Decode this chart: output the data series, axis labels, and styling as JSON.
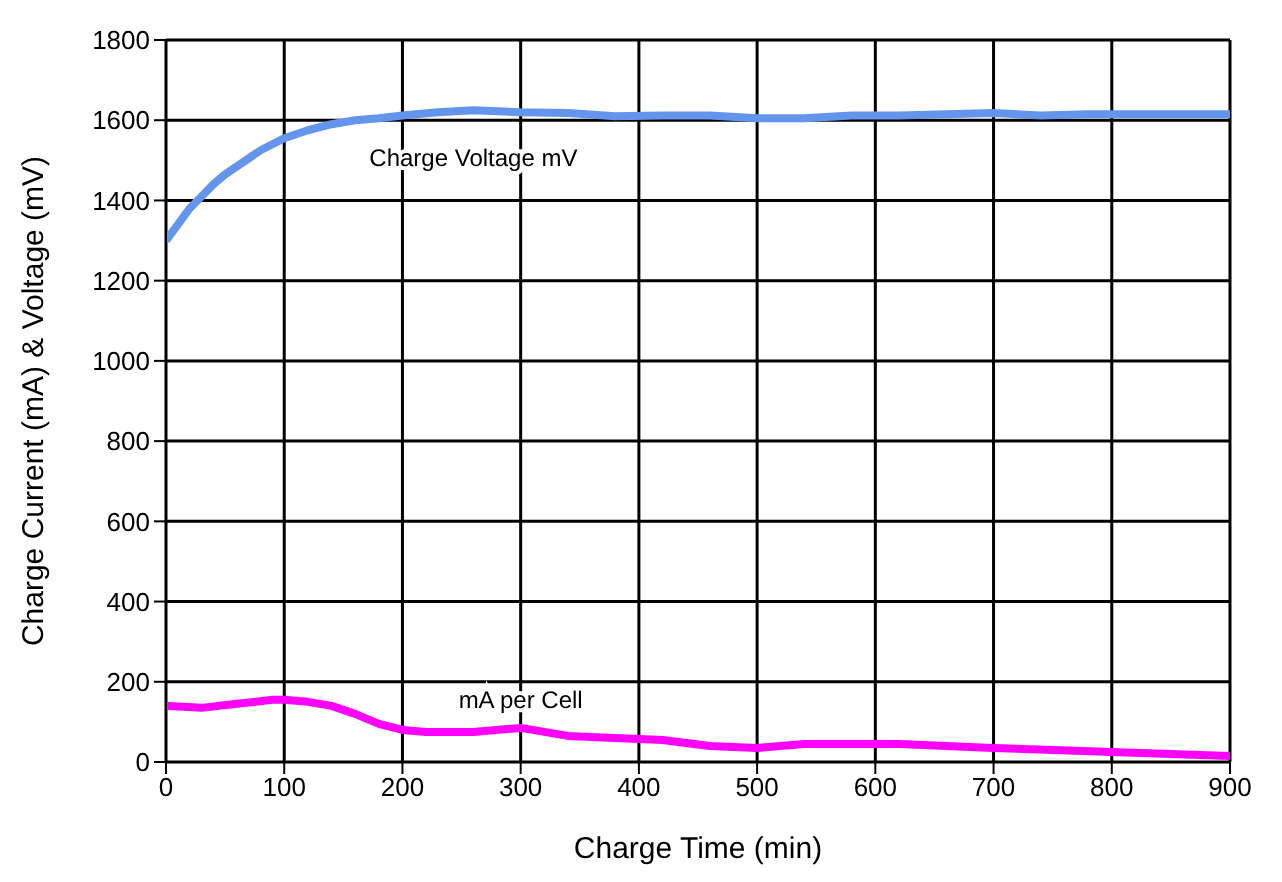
{
  "chart_data": {
    "type": "line",
    "xlabel": "Charge Time (min)",
    "ylabel": "Charge Current (mA) & Voltage (mV)",
    "series": [
      {
        "name": "Charge Voltage mV",
        "color": "#6495ed",
        "x": [
          0,
          10,
          20,
          30,
          40,
          50,
          60,
          70,
          80,
          90,
          100,
          120,
          140,
          160,
          180,
          200,
          230,
          260,
          300,
          340,
          380,
          420,
          460,
          500,
          540,
          580,
          620,
          660,
          700,
          740,
          780,
          820,
          860,
          900
        ],
        "values": [
          1300,
          1340,
          1380,
          1410,
          1440,
          1465,
          1485,
          1505,
          1525,
          1540,
          1555,
          1575,
          1590,
          1600,
          1605,
          1612,
          1620,
          1625,
          1620,
          1618,
          1610,
          1612,
          1612,
          1605,
          1605,
          1612,
          1612,
          1615,
          1618,
          1612,
          1615,
          1615,
          1615,
          1615
        ]
      },
      {
        "name": "mA per Cell",
        "color": "#ff00ff",
        "x": [
          0,
          30,
          60,
          90,
          100,
          120,
          140,
          160,
          180,
          200,
          220,
          260,
          300,
          340,
          380,
          420,
          460,
          500,
          540,
          580,
          620,
          700,
          800,
          900
        ],
        "values": [
          140,
          135,
          145,
          155,
          155,
          150,
          140,
          120,
          95,
          80,
          75,
          75,
          85,
          65,
          60,
          55,
          40,
          35,
          45,
          45,
          45,
          35,
          25,
          15
        ]
      }
    ],
    "xlim": [
      0,
      900
    ],
    "xticks": [
      0,
      100,
      200,
      300,
      400,
      500,
      600,
      700,
      800,
      900
    ],
    "ylim": [
      0,
      1800
    ],
    "yticks": [
      0,
      200,
      400,
      600,
      800,
      1000,
      1200,
      1400,
      1600,
      1800
    ],
    "grid": true,
    "legend": false,
    "marker": "none",
    "line_style": "solid"
  }
}
